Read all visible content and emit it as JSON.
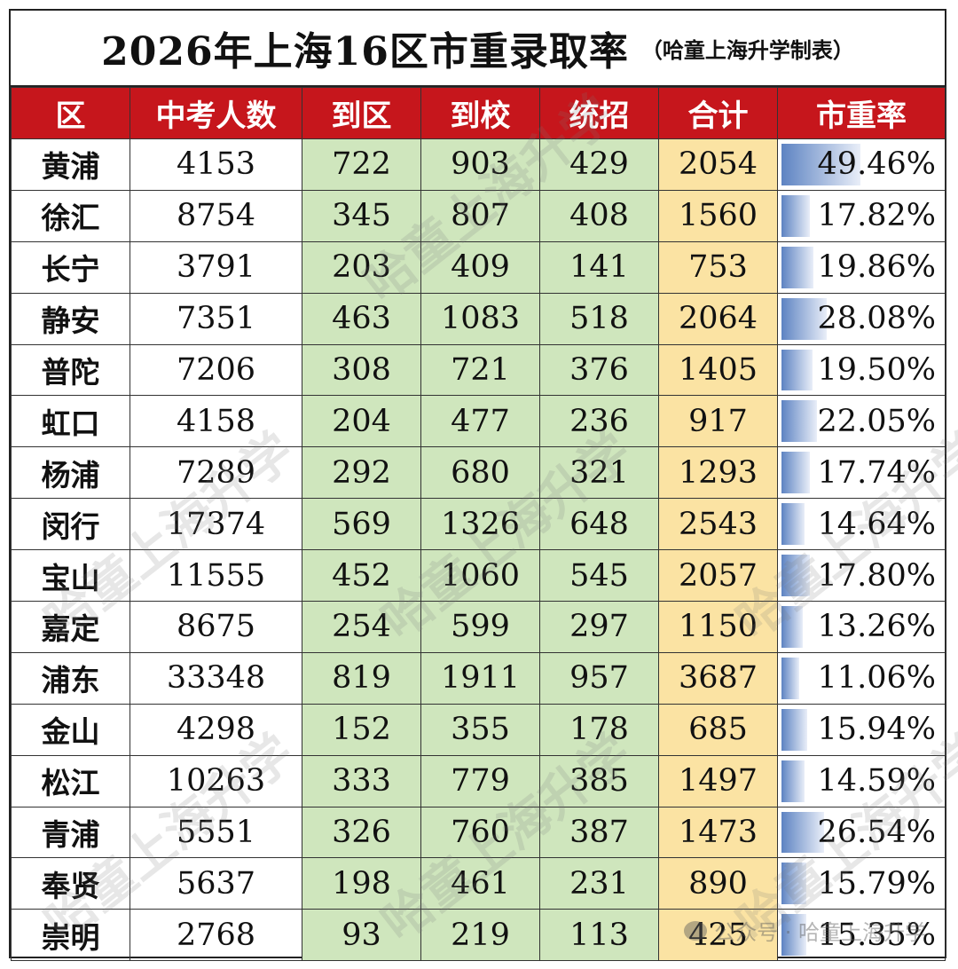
{
  "title": "2026年上海16区市重录取率",
  "subtitle": "（哈童上海升学制表）",
  "headers": [
    "区",
    "中考人数",
    "到区",
    "到校",
    "统招",
    "合计",
    "市重率"
  ],
  "rows": [
    {
      "district": "黄浦",
      "students": "4153",
      "to_district": "722",
      "to_school": "903",
      "general": "429",
      "total": "2054",
      "rate": "49.46%",
      "rate_value": 0.4946
    },
    {
      "district": "徐汇",
      "students": "8754",
      "to_district": "345",
      "to_school": "807",
      "general": "408",
      "total": "1560",
      "rate": "17.82%",
      "rate_value": 0.1782
    },
    {
      "district": "长宁",
      "students": "3791",
      "to_district": "203",
      "to_school": "409",
      "general": "141",
      "total": "753",
      "rate": "19.86%",
      "rate_value": 0.1986
    },
    {
      "district": "静安",
      "students": "7351",
      "to_district": "463",
      "to_school": "1083",
      "general": "518",
      "total": "2064",
      "rate": "28.08%",
      "rate_value": 0.2808
    },
    {
      "district": "普陀",
      "students": "7206",
      "to_district": "308",
      "to_school": "721",
      "general": "376",
      "total": "1405",
      "rate": "19.50%",
      "rate_value": 0.195
    },
    {
      "district": "虹口",
      "students": "4158",
      "to_district": "204",
      "to_school": "477",
      "general": "236",
      "total": "917",
      "rate": "22.05%",
      "rate_value": 0.2205
    },
    {
      "district": "杨浦",
      "students": "7289",
      "to_district": "292",
      "to_school": "680",
      "general": "321",
      "total": "1293",
      "rate": "17.74%",
      "rate_value": 0.1774
    },
    {
      "district": "闵行",
      "students": "17374",
      "to_district": "569",
      "to_school": "1326",
      "general": "648",
      "total": "2543",
      "rate": "14.64%",
      "rate_value": 0.1464
    },
    {
      "district": "宝山",
      "students": "11555",
      "to_district": "452",
      "to_school": "1060",
      "general": "545",
      "total": "2057",
      "rate": "17.80%",
      "rate_value": 0.178
    },
    {
      "district": "嘉定",
      "students": "8675",
      "to_district": "254",
      "to_school": "599",
      "general": "297",
      "total": "1150",
      "rate": "13.26%",
      "rate_value": 0.1326
    },
    {
      "district": "浦东",
      "students": "33348",
      "to_district": "819",
      "to_school": "1911",
      "general": "957",
      "total": "3687",
      "rate": "11.06%",
      "rate_value": 0.1106
    },
    {
      "district": "金山",
      "students": "4298",
      "to_district": "152",
      "to_school": "355",
      "general": "178",
      "total": "685",
      "rate": "15.94%",
      "rate_value": 0.1594
    },
    {
      "district": "松江",
      "students": "10263",
      "to_district": "333",
      "to_school": "779",
      "general": "385",
      "total": "1497",
      "rate": "14.59%",
      "rate_value": 0.1459
    },
    {
      "district": "青浦",
      "students": "5551",
      "to_district": "326",
      "to_school": "760",
      "general": "387",
      "total": "1473",
      "rate": "26.54%",
      "rate_value": 0.2654
    },
    {
      "district": "奉贤",
      "students": "5637",
      "to_district": "198",
      "to_school": "461",
      "general": "231",
      "total": "890",
      "rate": "15.79%",
      "rate_value": 0.1579
    },
    {
      "district": "崇明",
      "students": "2768",
      "to_district": "93",
      "to_school": "219",
      "general": "113",
      "total": "425",
      "rate": "15.35%",
      "rate_value": 0.1535
    }
  ],
  "watermark_text": "哈童上海升学",
  "footer_mark": "公众号 · 哈童上海升学",
  "colors": {
    "header_bg": "#c6161c",
    "green": "#cfe6bd",
    "yellow": "#fbe3a3",
    "bar": "#5d83c2"
  }
}
